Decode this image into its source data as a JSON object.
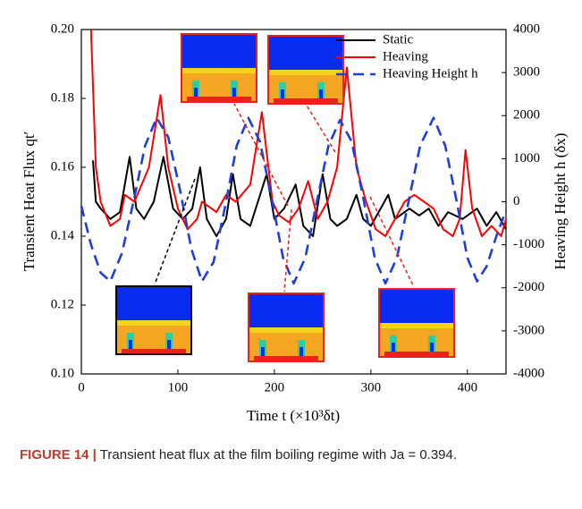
{
  "chart_data": {
    "type": "line",
    "xlabel": "Time t (×10³δt)",
    "ylabel": "Transient Heat Flux qt′",
    "y2label": "Heaving Height h (δx)",
    "xlim": [
      0,
      440
    ],
    "xticks": [
      0,
      100,
      200,
      300,
      400
    ],
    "ylim": [
      0.1,
      0.2
    ],
    "yticks": [
      {
        "value": 0.1,
        "label": "0.10"
      },
      0.12,
      0.14,
      0.16,
      0.18,
      {
        "value": 0.2,
        "label": "0.20"
      }
    ],
    "y2lim": [
      -4000,
      4000
    ],
    "y2ticks": [
      -4000,
      -3000,
      -2000,
      -1000,
      0,
      1000,
      2000,
      3000,
      4000
    ],
    "legend": "upper right",
    "series": [
      {
        "name": "Static",
        "color": "#000000",
        "x": [
          12,
          15,
          20,
          30,
          40,
          50,
          57,
          65,
          75,
          85,
          95,
          105,
          115,
          123,
          130,
          140,
          150,
          157,
          165,
          175,
          192,
          200,
          210,
          222,
          230,
          240,
          250,
          258,
          265,
          275,
          285,
          292,
          300,
          310,
          318,
          325,
          340,
          350,
          360,
          370,
          380,
          395,
          410,
          420,
          430,
          440
        ],
        "values": [
          0.162,
          0.15,
          0.148,
          0.145,
          0.147,
          0.163,
          0.148,
          0.145,
          0.15,
          0.163,
          0.148,
          0.145,
          0.148,
          0.16,
          0.145,
          0.14,
          0.145,
          0.158,
          0.145,
          0.143,
          0.158,
          0.145,
          0.148,
          0.155,
          0.143,
          0.14,
          0.158,
          0.145,
          0.143,
          0.145,
          0.152,
          0.145,
          0.143,
          0.148,
          0.152,
          0.145,
          0.148,
          0.146,
          0.148,
          0.143,
          0.147,
          0.145,
          0.148,
          0.143,
          0.147,
          0.142
        ]
      },
      {
        "name": "Heaving",
        "color": "#ff0000",
        "x": [
          10,
          15,
          20,
          30,
          40,
          45,
          55,
          70,
          82,
          90,
          100,
          110,
          120,
          125,
          140,
          150,
          160,
          175,
          187,
          198,
          205,
          215,
          225,
          235,
          245,
          255,
          265,
          275,
          285,
          295,
          305,
          315,
          325,
          335,
          345,
          355,
          365,
          375,
          385,
          392,
          398,
          405,
          415,
          425,
          435,
          440
        ],
        "values": [
          0.2,
          0.16,
          0.15,
          0.143,
          0.145,
          0.152,
          0.15,
          0.16,
          0.181,
          0.16,
          0.148,
          0.142,
          0.145,
          0.15,
          0.147,
          0.152,
          0.15,
          0.155,
          0.176,
          0.15,
          0.146,
          0.144,
          0.148,
          0.156,
          0.145,
          0.15,
          0.16,
          0.189,
          0.16,
          0.15,
          0.142,
          0.14,
          0.145,
          0.15,
          0.152,
          0.15,
          0.148,
          0.142,
          0.14,
          0.145,
          0.165,
          0.148,
          0.14,
          0.143,
          0.14,
          0.145
        ]
      },
      {
        "name": "Heaving Height h",
        "color": "#1f3fd6",
        "axis": "y2",
        "dashed": true,
        "x": [
          0,
          10,
          20,
          30,
          42,
          54,
          66,
          78,
          90,
          102,
          114,
          125,
          137,
          149,
          161,
          173,
          185,
          197,
          209,
          220,
          232,
          244,
          256,
          268,
          280,
          292,
          304,
          315,
          327,
          339,
          351,
          365,
          377,
          389,
          400,
          410,
          420,
          430,
          440
        ],
        "values": [
          -100,
          -1000,
          -1650,
          -1850,
          -1200,
          0,
          1300,
          1950,
          1500,
          300,
          -1100,
          -1850,
          -1400,
          -100,
          1300,
          1950,
          1400,
          100,
          -1300,
          -1900,
          -1300,
          0,
          1300,
          1900,
          1400,
          100,
          -1300,
          -1900,
          -1300,
          0,
          1300,
          1950,
          1300,
          0,
          -1300,
          -1850,
          -1500,
          -800,
          -200
        ]
      }
    ]
  },
  "caption": {
    "label": "FIGURE 14 |",
    "text": "Transient heat flux at the film boiling regime with Ja = 0.394."
  }
}
